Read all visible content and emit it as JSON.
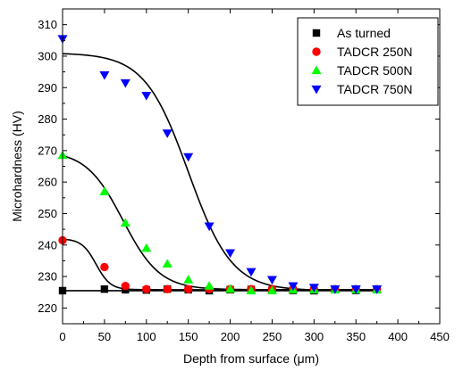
{
  "chart_data": {
    "type": "scatter",
    "title": "",
    "xlabel": "Depth from surface (μm)",
    "ylabel": "Microhardness (HV)",
    "xlim": [
      0,
      450
    ],
    "ylim": [
      215,
      315
    ],
    "x_ticks": [
      0,
      50,
      100,
      150,
      200,
      250,
      300,
      350,
      400,
      450
    ],
    "y_ticks": [
      220,
      230,
      240,
      250,
      260,
      270,
      280,
      290,
      300,
      310
    ],
    "grid": false,
    "legend_position": "top-right",
    "series": [
      {
        "name": "As turned",
        "marker": "square",
        "color": "#000000",
        "x": [
          0,
          50,
          75,
          100,
          125,
          150,
          175,
          200,
          225,
          250,
          275,
          300,
          325,
          350,
          375
        ],
        "y": [
          225.5,
          226,
          225.8,
          225.7,
          226,
          225.8,
          225.5,
          225.8,
          225.9,
          225.7,
          225.6,
          225.5,
          225.8,
          225.6,
          225.8
        ]
      },
      {
        "name": "TADCR 250N",
        "marker": "circle",
        "color": "#ff0000",
        "x": [
          0,
          50,
          75,
          100,
          125,
          150,
          175,
          200,
          225,
          250,
          275,
          300,
          325,
          350,
          375
        ],
        "y": [
          241.5,
          233,
          227,
          226,
          226,
          226,
          226,
          226,
          226,
          226,
          226,
          226,
          226,
          226,
          226
        ]
      },
      {
        "name": "TADCR 500N",
        "marker": "triangle-up",
        "color": "#00ff00",
        "x": [
          0,
          50,
          75,
          100,
          125,
          150,
          175,
          200,
          225,
          250,
          275,
          300,
          325,
          350,
          375
        ],
        "y": [
          268.5,
          257,
          247,
          239,
          234,
          229,
          227,
          226,
          225.5,
          225.5,
          225.8,
          225.8,
          225.8,
          225.8,
          225.8
        ]
      },
      {
        "name": "TADCR 750N",
        "marker": "triangle-down",
        "color": "#0000ff",
        "x": [
          0,
          50,
          75,
          100,
          125,
          150,
          175,
          200,
          225,
          250,
          275,
          300,
          325,
          350,
          375
        ],
        "y": [
          305.5,
          294,
          291.5,
          287.5,
          275.5,
          268,
          246,
          237.5,
          231.5,
          229,
          227,
          226.5,
          226,
          226,
          226
        ]
      }
    ],
    "fit_curves": [
      {
        "series": "As turned",
        "y0": 225.5,
        "y1": 225.5,
        "x0": 0,
        "k": 1
      },
      {
        "series": "TADCR 250N",
        "y0": 225.8,
        "y1": 242,
        "x0": 40,
        "k": 8.5
      },
      {
        "series": "TADCR 500N",
        "y0": 225.8,
        "y1": 270,
        "x0": 72,
        "k": 22
      },
      {
        "series": "TADCR 750N",
        "y0": 225.5,
        "y1": 301,
        "x0": 150,
        "k": 26
      }
    ]
  }
}
